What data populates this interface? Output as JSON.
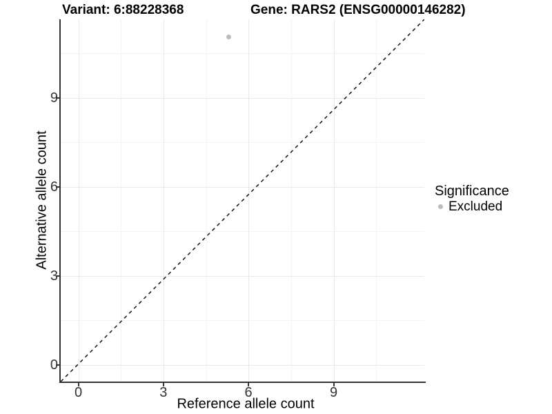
{
  "titles": {
    "variant": "Variant: 6:88228368",
    "gene": "Gene: RARS2 (ENSG00000146282)"
  },
  "chart_data": {
    "type": "scatter",
    "title_left": "Variant: 6:88228368",
    "title_right": "Gene: RARS2 (ENSG00000146282)",
    "xlabel": "Reference allele count",
    "ylabel": "Alternative allele count",
    "x_ticks": [
      0,
      3,
      6,
      9
    ],
    "y_ticks": [
      0,
      3,
      6,
      9
    ],
    "x_minor_gridlines": [
      1.5,
      4.5,
      7.5,
      10.5
    ],
    "y_minor_gridlines": [
      1.5,
      4.5,
      7.5,
      10.5
    ],
    "xlim": [
      -0.62,
      12.2
    ],
    "ylim": [
      -0.57,
      11.64
    ],
    "grid": "major+minor",
    "panel_background": "#ffffff",
    "series": [
      {
        "name": "Excluded",
        "color": "#bcbcbc",
        "points": [
          {
            "x": 5.3,
            "y": 11.05
          }
        ]
      }
    ],
    "reference_line": {
      "kind": "identity y=x",
      "style": "dashed",
      "color": "#111111"
    },
    "legend": {
      "title": "Significance",
      "position": "right",
      "items": [
        {
          "label": "Excluded",
          "color": "#bcbcbc"
        }
      ]
    }
  }
}
